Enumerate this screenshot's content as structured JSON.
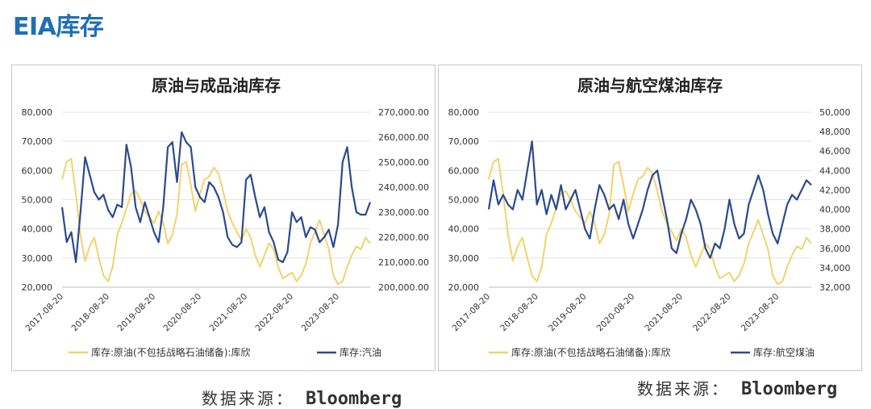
{
  "page": {
    "title": "EIA库存"
  },
  "sources": {
    "left": {
      "label": "数据来源：",
      "value": "Bloomberg"
    },
    "right": {
      "label": "数据来源：",
      "value": "Bloomberg"
    }
  },
  "colors": {
    "primary": "#f2d36b",
    "secondary": "#2b4a8f",
    "title": "#1f6fb5"
  },
  "chart_data": [
    {
      "type": "line",
      "title": "原油与成品油库存",
      "x_ticks": [
        "2017-08-20",
        "2018-08-20",
        "2019-08-20",
        "2020-08-20",
        "2021-08-20",
        "2022-08-20",
        "2023-08-20"
      ],
      "x_range": [
        2017.6,
        2024.3
      ],
      "y_left": {
        "ticks": [
          "20,000",
          "30,000",
          "40,000",
          "50,000",
          "60,000",
          "70,000",
          "80,000"
        ],
        "range": [
          20000,
          80000
        ]
      },
      "y_right": {
        "ticks": [
          "200,000.00",
          "210,000.00",
          "220,000.00",
          "230,000.00",
          "240,000.00",
          "250,000.00",
          "260,000.00",
          "270,000.00"
        ],
        "range": [
          200000,
          270000
        ]
      },
      "grid": true,
      "legend_position": "bottom",
      "series": [
        {
          "name": "库存:原油(不包括战略石油储备):库欣",
          "axis": "left",
          "color": "#f2d36b",
          "x": [
            2017.6,
            2017.7,
            2017.8,
            2017.9,
            2018.0,
            2018.1,
            2018.2,
            2018.3,
            2018.4,
            2018.5,
            2018.6,
            2018.7,
            2018.8,
            2018.9,
            2019.0,
            2019.1,
            2019.2,
            2019.3,
            2019.4,
            2019.5,
            2019.6,
            2019.7,
            2019.8,
            2019.9,
            2020.0,
            2020.1,
            2020.2,
            2020.3,
            2020.4,
            2020.5,
            2020.6,
            2020.7,
            2020.8,
            2020.9,
            2021.0,
            2021.1,
            2021.2,
            2021.3,
            2021.4,
            2021.5,
            2021.6,
            2021.7,
            2021.8,
            2021.9,
            2022.0,
            2022.1,
            2022.2,
            2022.3,
            2022.4,
            2022.5,
            2022.6,
            2022.7,
            2022.8,
            2022.9,
            2023.0,
            2023.1,
            2023.2,
            2023.3,
            2023.4,
            2023.5,
            2023.6,
            2023.7,
            2023.8,
            2023.9,
            2024.0,
            2024.1,
            2024.2,
            2024.3
          ],
          "values": [
            57000,
            63000,
            64000,
            52000,
            38000,
            29000,
            34000,
            37000,
            30000,
            24000,
            22000,
            27000,
            38000,
            42000,
            47000,
            52000,
            53000,
            50000,
            46000,
            44000,
            42000,
            46000,
            42000,
            35000,
            38000,
            45000,
            62000,
            63000,
            55000,
            46000,
            52000,
            57000,
            58000,
            61000,
            59000,
            53000,
            46000,
            42000,
            39000,
            36000,
            40000,
            37000,
            31000,
            27000,
            31000,
            35000,
            33000,
            27000,
            23000,
            24000,
            25000,
            22000,
            24000,
            28000,
            35000,
            39000,
            43000,
            38000,
            33000,
            24000,
            21000,
            22000,
            27000,
            31000,
            34000,
            33000,
            37000,
            35000
          ]
        },
        {
          "name": "库存:汽油",
          "axis": "right",
          "color": "#2b4a8f",
          "x": [
            2017.6,
            2017.7,
            2017.8,
            2017.9,
            2018.0,
            2018.1,
            2018.2,
            2018.3,
            2018.4,
            2018.5,
            2018.6,
            2018.7,
            2018.8,
            2018.9,
            2019.0,
            2019.1,
            2019.2,
            2019.3,
            2019.4,
            2019.5,
            2019.6,
            2019.7,
            2019.8,
            2019.9,
            2020.0,
            2020.1,
            2020.2,
            2020.3,
            2020.4,
            2020.5,
            2020.6,
            2020.7,
            2020.8,
            2020.9,
            2021.0,
            2021.1,
            2021.2,
            2021.3,
            2021.4,
            2021.5,
            2021.6,
            2021.7,
            2021.8,
            2021.9,
            2022.0,
            2022.1,
            2022.2,
            2022.3,
            2022.4,
            2022.5,
            2022.6,
            2022.7,
            2022.8,
            2022.9,
            2023.0,
            2023.1,
            2023.2,
            2023.3,
            2023.4,
            2023.5,
            2023.6,
            2023.7,
            2023.8,
            2023.9,
            2024.0,
            2024.1,
            2024.2,
            2024.3
          ],
          "values": [
            232000,
            218000,
            222000,
            210000,
            230000,
            252000,
            245000,
            238000,
            235000,
            237000,
            231000,
            228000,
            233000,
            232000,
            257000,
            248000,
            232000,
            226000,
            234000,
            228000,
            222000,
            218000,
            232000,
            256000,
            258000,
            242000,
            262000,
            258000,
            256000,
            240000,
            236000,
            234000,
            242000,
            240000,
            236000,
            230000,
            220000,
            217000,
            216000,
            218000,
            243000,
            245000,
            236000,
            228000,
            232000,
            222000,
            218000,
            211000,
            210000,
            214000,
            230000,
            226000,
            228000,
            220000,
            224000,
            223000,
            218000,
            220000,
            223000,
            216000,
            225000,
            250000,
            256000,
            240000,
            230000,
            229000,
            229000,
            234000
          ]
        }
      ]
    },
    {
      "type": "line",
      "title": "原油与航空煤油库存",
      "x_ticks": [
        "2017-08-20",
        "2018-08-20",
        "2019-08-20",
        "2020-08-20",
        "2021-08-20",
        "2022-08-20",
        "2023-08-20"
      ],
      "x_range": [
        2017.6,
        2024.3
      ],
      "y_left": {
        "ticks": [
          "20,000",
          "30,000",
          "40,000",
          "50,000",
          "60,000",
          "70,000",
          "80,000"
        ],
        "range": [
          20000,
          80000
        ]
      },
      "y_right": {
        "ticks": [
          "32,000",
          "34,000",
          "36,000",
          "38,000",
          "40,000",
          "42,000",
          "44,000",
          "46,000",
          "48,000",
          "50,000"
        ],
        "range": [
          32000,
          50000
        ]
      },
      "grid": true,
      "legend_position": "bottom",
      "series": [
        {
          "name": "库存:原油(不包括战略石油储备):库欣",
          "axis": "left",
          "color": "#f2d36b",
          "x": [
            2017.6,
            2017.7,
            2017.8,
            2017.9,
            2018.0,
            2018.1,
            2018.2,
            2018.3,
            2018.4,
            2018.5,
            2018.6,
            2018.7,
            2018.8,
            2018.9,
            2019.0,
            2019.1,
            2019.2,
            2019.3,
            2019.4,
            2019.5,
            2019.6,
            2019.7,
            2019.8,
            2019.9,
            2020.0,
            2020.1,
            2020.2,
            2020.3,
            2020.4,
            2020.5,
            2020.6,
            2020.7,
            2020.8,
            2020.9,
            2021.0,
            2021.1,
            2021.2,
            2021.3,
            2021.4,
            2021.5,
            2021.6,
            2021.7,
            2021.8,
            2021.9,
            2022.0,
            2022.1,
            2022.2,
            2022.3,
            2022.4,
            2022.5,
            2022.6,
            2022.7,
            2022.8,
            2022.9,
            2023.0,
            2023.1,
            2023.2,
            2023.3,
            2023.4,
            2023.5,
            2023.6,
            2023.7,
            2023.8,
            2023.9,
            2024.0,
            2024.1,
            2024.2,
            2024.3
          ],
          "values": [
            57000,
            63000,
            64000,
            52000,
            38000,
            29000,
            34000,
            37000,
            30000,
            24000,
            22000,
            27000,
            38000,
            42000,
            47000,
            52000,
            53000,
            50000,
            46000,
            44000,
            42000,
            46000,
            42000,
            35000,
            38000,
            45000,
            62000,
            63000,
            55000,
            46000,
            52000,
            57000,
            58000,
            61000,
            59000,
            53000,
            46000,
            42000,
            39000,
            36000,
            40000,
            37000,
            31000,
            27000,
            31000,
            35000,
            33000,
            27000,
            23000,
            24000,
            25000,
            22000,
            24000,
            28000,
            35000,
            39000,
            43000,
            38000,
            33000,
            24000,
            21000,
            22000,
            27000,
            31000,
            34000,
            33000,
            37000,
            35000
          ]
        },
        {
          "name": "库存:航空煤油",
          "axis": "right",
          "color": "#2b4a8f",
          "x": [
            2017.6,
            2017.7,
            2017.8,
            2017.9,
            2018.0,
            2018.1,
            2018.2,
            2018.3,
            2018.4,
            2018.5,
            2018.6,
            2018.7,
            2018.8,
            2018.9,
            2019.0,
            2019.1,
            2019.2,
            2019.3,
            2019.4,
            2019.5,
            2019.6,
            2019.7,
            2019.8,
            2019.9,
            2020.0,
            2020.1,
            2020.2,
            2020.3,
            2020.4,
            2020.5,
            2020.6,
            2020.7,
            2020.8,
            2020.9,
            2021.0,
            2021.1,
            2021.2,
            2021.3,
            2021.4,
            2021.5,
            2021.6,
            2021.7,
            2021.8,
            2021.9,
            2022.0,
            2022.1,
            2022.2,
            2022.3,
            2022.4,
            2022.5,
            2022.6,
            2022.7,
            2022.8,
            2022.9,
            2023.0,
            2023.1,
            2023.2,
            2023.3,
            2023.4,
            2023.5,
            2023.6,
            2023.7,
            2023.8,
            2023.9,
            2024.0,
            2024.1,
            2024.2,
            2024.3
          ],
          "values": [
            40000,
            43000,
            40500,
            41500,
            40500,
            40000,
            42000,
            41000,
            44000,
            47000,
            40500,
            42000,
            39500,
            41500,
            40000,
            42500,
            40000,
            41000,
            42000,
            40000,
            38000,
            37000,
            40000,
            42500,
            41500,
            40000,
            40500,
            39000,
            41000,
            38500,
            37000,
            38500,
            40000,
            42000,
            43500,
            44000,
            41500,
            39000,
            36000,
            35500,
            37500,
            39000,
            41000,
            40000,
            38500,
            36000,
            35000,
            36500,
            36000,
            38000,
            41000,
            38500,
            37000,
            37500,
            40500,
            42000,
            43500,
            42000,
            39500,
            37500,
            36500,
            38500,
            40500,
            41500,
            41000,
            42000,
            43000,
            42500
          ]
        }
      ]
    }
  ]
}
